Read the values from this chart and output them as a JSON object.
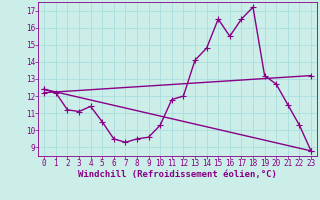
{
  "title": "",
  "xlabel": "Windchill (Refroidissement éolien,°C)",
  "ylabel": "",
  "bg_color": "#cceee8",
  "line_color": "#880088",
  "xlim": [
    -0.5,
    23.5
  ],
  "ylim": [
    8.5,
    17.5
  ],
  "xticks": [
    0,
    1,
    2,
    3,
    4,
    5,
    6,
    7,
    8,
    9,
    10,
    11,
    12,
    13,
    14,
    15,
    16,
    17,
    18,
    19,
    20,
    21,
    22,
    23
  ],
  "yticks": [
    9,
    10,
    11,
    12,
    13,
    14,
    15,
    16,
    17
  ],
  "grid_color": "#aadddd",
  "curve1_x": [
    0,
    1,
    2,
    3,
    4,
    5,
    6,
    7,
    8,
    9,
    10,
    11,
    12,
    13,
    14,
    15,
    16,
    17,
    18,
    19,
    20,
    21,
    22,
    23
  ],
  "curve1_y": [
    12.4,
    12.2,
    11.2,
    11.1,
    11.4,
    10.5,
    9.5,
    9.3,
    9.5,
    9.6,
    10.3,
    11.8,
    12.0,
    14.1,
    14.8,
    16.5,
    15.5,
    16.5,
    17.2,
    13.2,
    12.7,
    11.5,
    10.3,
    8.8
  ],
  "curve2_x": [
    0,
    23
  ],
  "curve2_y": [
    12.4,
    8.8
  ],
  "curve3_x": [
    0,
    23
  ],
  "curve3_y": [
    12.2,
    13.2
  ],
  "marker": "+",
  "markersize": 4,
  "linewidth": 1.0,
  "xlabel_fontsize": 6.5,
  "tick_fontsize": 5.5,
  "tick_color": "#880088",
  "xlabel_color": "#880088"
}
